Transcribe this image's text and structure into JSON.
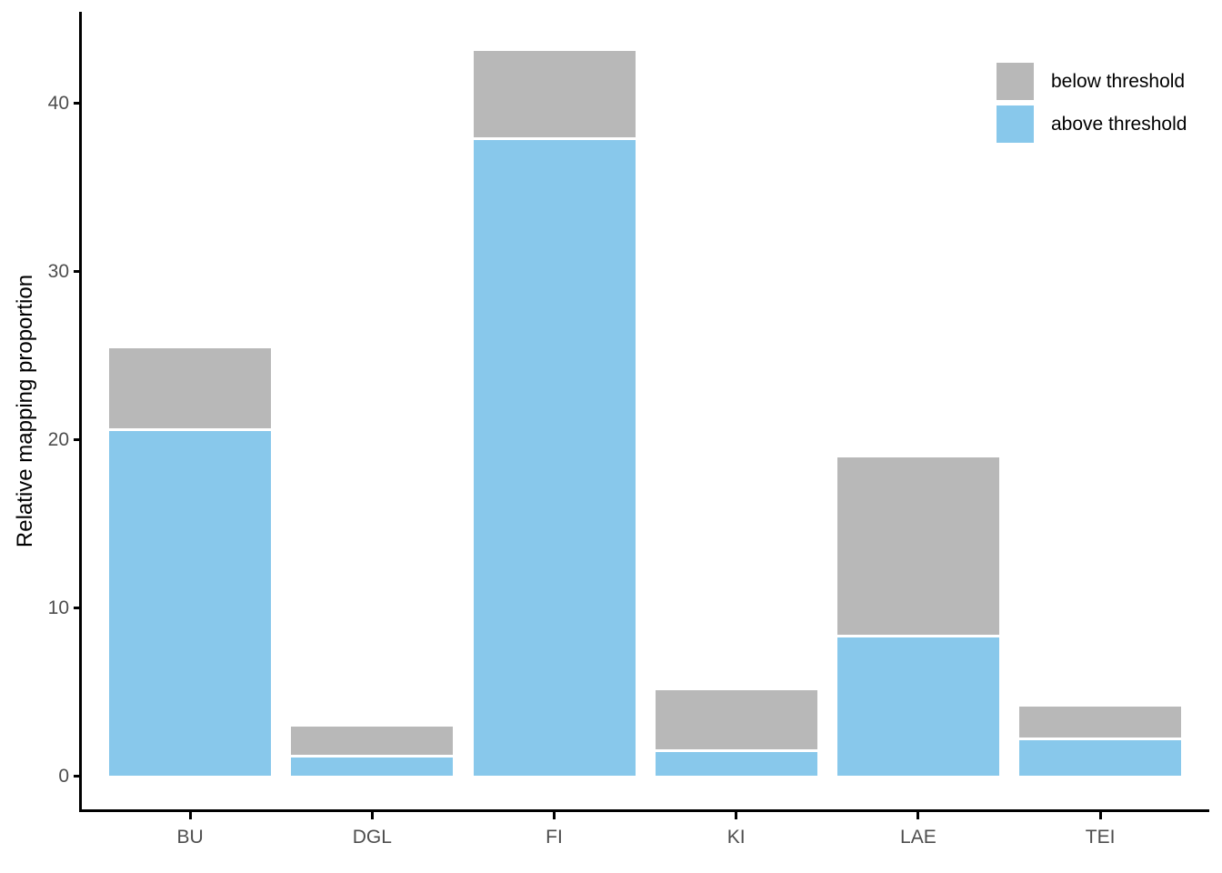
{
  "chart_data": {
    "type": "bar",
    "stacked": true,
    "title": "",
    "xlabel": "",
    "ylabel": "Relative mapping proportion",
    "categories": [
      "BU",
      "DGL",
      "FI",
      "KI",
      "LAE",
      "TEI"
    ],
    "series": [
      {
        "name": "above threshold",
        "color": "#88C8EB",
        "values": [
          20.5,
          1.1,
          37.8,
          1.4,
          8.2,
          2.1
        ]
      },
      {
        "name": "below threshold",
        "color": "#B8B8B8",
        "values": [
          4.9,
          1.8,
          5.3,
          3.7,
          10.7,
          2.0
        ]
      }
    ],
    "stack_order_bottom_to_top": [
      "above threshold",
      "below threshold"
    ],
    "totals": [
      25.4,
      2.9,
      43.1,
      5.1,
      18.9,
      4.1
    ],
    "yticks": [
      0,
      10,
      20,
      30,
      40
    ],
    "ylim": [
      0,
      45.4
    ],
    "grid": false,
    "legend": {
      "position": "top-right",
      "entries": [
        {
          "label": "below threshold",
          "color": "#B8B8B8"
        },
        {
          "label": "above threshold",
          "color": "#88C8EB"
        }
      ]
    }
  },
  "colors": {
    "background": "#FFFFFF",
    "axis_line": "#000000",
    "tick_label": "#4D4D4D",
    "axis_title": "#000000",
    "legend_text": "#000000"
  }
}
